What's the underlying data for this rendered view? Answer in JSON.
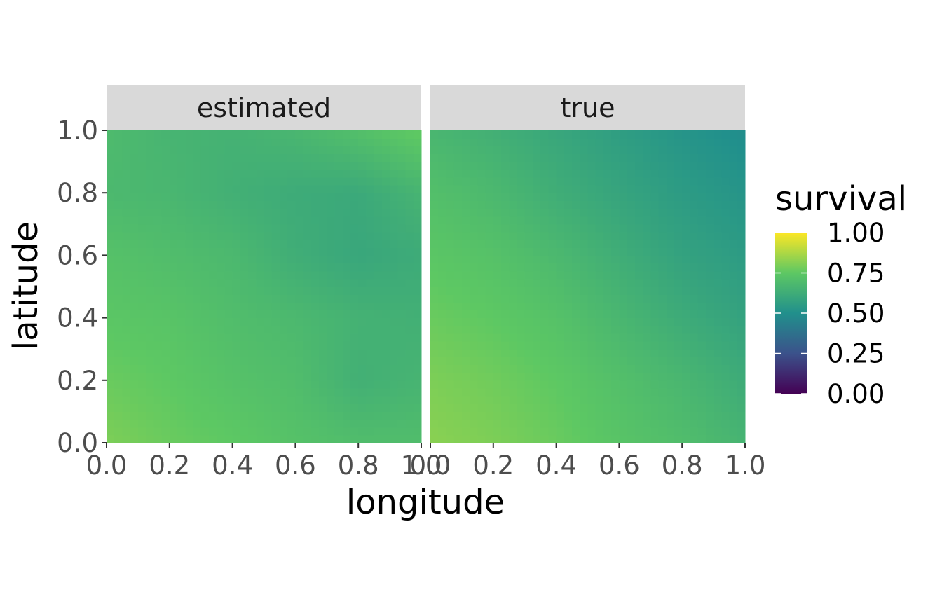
{
  "chart_data": {
    "type": "heatmap",
    "xlabel": "longitude",
    "ylabel": "latitude",
    "xlim": [
      0,
      1
    ],
    "ylim": [
      0,
      1
    ],
    "x_ticks": [
      "0.0",
      "0.2",
      "0.4",
      "0.6",
      "0.8",
      "1.0"
    ],
    "y_ticks": [
      "0.0",
      "0.2",
      "0.4",
      "0.6",
      "0.8",
      "1.0"
    ],
    "grid": false,
    "legend": {
      "title": "survival",
      "placement": "right",
      "range": [
        0,
        1
      ],
      "ticks": [
        "1.00",
        "0.75",
        "0.50",
        "0.25",
        "0.00"
      ],
      "palette": [
        "#440154",
        "#3b528b",
        "#21908c",
        "#5dc863",
        "#fde725"
      ]
    },
    "grid_x": [
      0.0,
      0.2,
      0.4,
      0.6,
      0.8,
      1.0
    ],
    "grid_y": [
      0.0,
      0.2,
      0.4,
      0.6,
      0.8,
      1.0
    ],
    "panels": [
      {
        "name": "estimated",
        "values": [
          [
            0.8,
            0.77,
            0.75,
            0.72,
            0.7,
            0.7
          ],
          [
            0.77,
            0.75,
            0.72,
            0.7,
            0.64,
            0.66
          ],
          [
            0.74,
            0.73,
            0.7,
            0.68,
            0.65,
            0.64
          ],
          [
            0.72,
            0.7,
            0.68,
            0.63,
            0.6,
            0.62
          ],
          [
            0.68,
            0.67,
            0.64,
            0.62,
            0.61,
            0.66
          ],
          [
            0.69,
            0.66,
            0.65,
            0.67,
            0.71,
            0.76
          ]
        ]
      },
      {
        "name": "true",
        "values": [
          [
            0.82,
            0.8,
            0.77,
            0.73,
            0.7,
            0.66
          ],
          [
            0.8,
            0.78,
            0.75,
            0.71,
            0.67,
            0.62
          ],
          [
            0.77,
            0.75,
            0.72,
            0.67,
            0.62,
            0.58
          ],
          [
            0.74,
            0.72,
            0.68,
            0.63,
            0.58,
            0.55
          ],
          [
            0.71,
            0.68,
            0.63,
            0.59,
            0.55,
            0.52
          ],
          [
            0.67,
            0.64,
            0.6,
            0.56,
            0.52,
            0.49
          ]
        ]
      }
    ]
  }
}
